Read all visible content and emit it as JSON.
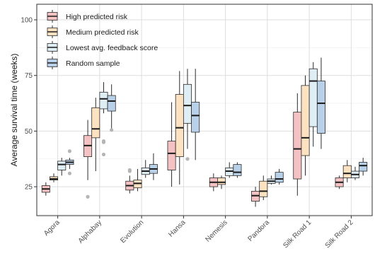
{
  "chart_data": {
    "type": "box",
    "title": "",
    "xlabel": "",
    "ylabel": "Average survival time (weeks)",
    "ylim": [
      12,
      107
    ],
    "yticks": [
      25,
      50,
      75,
      100
    ],
    "grid": true,
    "legend_position": "top-left",
    "categories": [
      "Agora",
      "Alphabay",
      "Evolution",
      "Hansa",
      "Nemesis",
      "Pandora",
      "Silk Road 1",
      "Silk Road 2"
    ],
    "series": [
      {
        "name": "High predicted risk",
        "fill": "#f4c2c2",
        "boxes": [
          {
            "min": 21,
            "q1": 22.5,
            "median": 24,
            "q3": 25.5,
            "max": 27,
            "outliers": []
          },
          {
            "min": 28,
            "q1": 38.5,
            "median": 43.5,
            "q3": 48,
            "max": 55,
            "outliers": [
              20.5
            ]
          },
          {
            "min": 22,
            "q1": 23.5,
            "median": 25.5,
            "q3": 27.5,
            "max": 30,
            "outliers": [
              32,
              32.5
            ]
          },
          {
            "min": 25,
            "q1": 32.5,
            "median": 40,
            "q3": 45.5,
            "max": 63,
            "outliers": []
          },
          {
            "min": 23,
            "q1": 25,
            "median": 27,
            "q3": 29,
            "max": 31,
            "outliers": []
          },
          {
            "min": 16,
            "q1": 18.5,
            "median": 21,
            "q3": 23,
            "max": 25,
            "outliers": []
          },
          {
            "min": 21,
            "q1": 28.5,
            "median": 42,
            "q3": 58.5,
            "max": 67,
            "outliers": []
          },
          {
            "min": 24,
            "q1": 25,
            "median": 27,
            "q3": 29,
            "max": 30,
            "outliers": []
          }
        ]
      },
      {
        "name": "Medium predicted risk",
        "fill": "#fde2c2",
        "boxes": [
          {
            "min": 27,
            "q1": 28,
            "median": 28.5,
            "q3": 29.5,
            "max": 31,
            "outliers": []
          },
          {
            "min": 32,
            "q1": 47,
            "median": 51,
            "q3": 60.5,
            "max": 65,
            "outliers": []
          },
          {
            "min": 23,
            "q1": 24.5,
            "median": 26.5,
            "q3": 28,
            "max": 33,
            "outliers": []
          },
          {
            "min": 26,
            "q1": 38.5,
            "median": 51.5,
            "q3": 66.5,
            "max": 77,
            "outliers": []
          },
          {
            "min": 24,
            "q1": 26,
            "median": 27,
            "q3": 29,
            "max": 30,
            "outliers": []
          },
          {
            "min": 19,
            "q1": 20.5,
            "median": 23,
            "q3": 27.5,
            "max": 30,
            "outliers": []
          },
          {
            "min": 30,
            "q1": 39,
            "median": 47,
            "q3": 70.5,
            "max": 75,
            "outliers": []
          },
          {
            "min": 27,
            "q1": 29,
            "median": 31,
            "q3": 34.5,
            "max": 37,
            "outliers": []
          }
        ]
      },
      {
        "name": "Lowest avg. feedback score",
        "fill": "#dfedf5",
        "boxes": [
          {
            "min": 30,
            "q1": 32.5,
            "median": 35,
            "q3": 36.5,
            "max": 38,
            "outliers": []
          },
          {
            "min": 58,
            "q1": 60,
            "median": 64.5,
            "q3": 67.5,
            "max": 72,
            "outliers": [
              39.5,
              45,
              45.5
            ]
          },
          {
            "min": 29,
            "q1": 30.5,
            "median": 32,
            "q3": 33.5,
            "max": 37,
            "outliers": []
          },
          {
            "min": 42,
            "q1": 53.5,
            "median": 61.5,
            "q3": 71,
            "max": 78,
            "outliers": [
              37.5
            ]
          },
          {
            "min": 29,
            "q1": 30,
            "median": 32,
            "q3": 33.5,
            "max": 36,
            "outliers": []
          },
          {
            "min": 26,
            "q1": 26.5,
            "median": 27.5,
            "q3": 28.5,
            "max": 30,
            "outliers": []
          },
          {
            "min": 43,
            "q1": 52,
            "median": 72.5,
            "q3": 78,
            "max": 81,
            "outliers": []
          },
          {
            "min": 28,
            "q1": 29,
            "median": 30.5,
            "q3": 32,
            "max": 34,
            "outliers": []
          }
        ]
      },
      {
        "name": "Random sample",
        "fill": "#b8d1e8",
        "boxes": [
          {
            "min": 33,
            "q1": 35,
            "median": 36,
            "q3": 37,
            "max": 38,
            "outliers": [
              41,
              31
            ]
          },
          {
            "min": 50,
            "q1": 59,
            "median": 63.5,
            "q3": 66,
            "max": 71,
            "outliers": [
              50.5
            ]
          },
          {
            "min": 28,
            "q1": 31,
            "median": 33,
            "q3": 35,
            "max": 40,
            "outliers": []
          },
          {
            "min": 37,
            "q1": 49.5,
            "median": 57,
            "q3": 63,
            "max": 78,
            "outliers": []
          },
          {
            "min": 29,
            "q1": 30,
            "median": 31.5,
            "q3": 35,
            "max": 36,
            "outliers": []
          },
          {
            "min": 26,
            "q1": 27,
            "median": 28.5,
            "q3": 31.5,
            "max": 33,
            "outliers": []
          },
          {
            "min": 42,
            "q1": 49,
            "median": 62.5,
            "q3": 72.5,
            "max": 83,
            "outliers": []
          },
          {
            "min": 30,
            "q1": 32,
            "median": 34.5,
            "q3": 36,
            "max": 38,
            "outliers": []
          }
        ]
      }
    ]
  }
}
